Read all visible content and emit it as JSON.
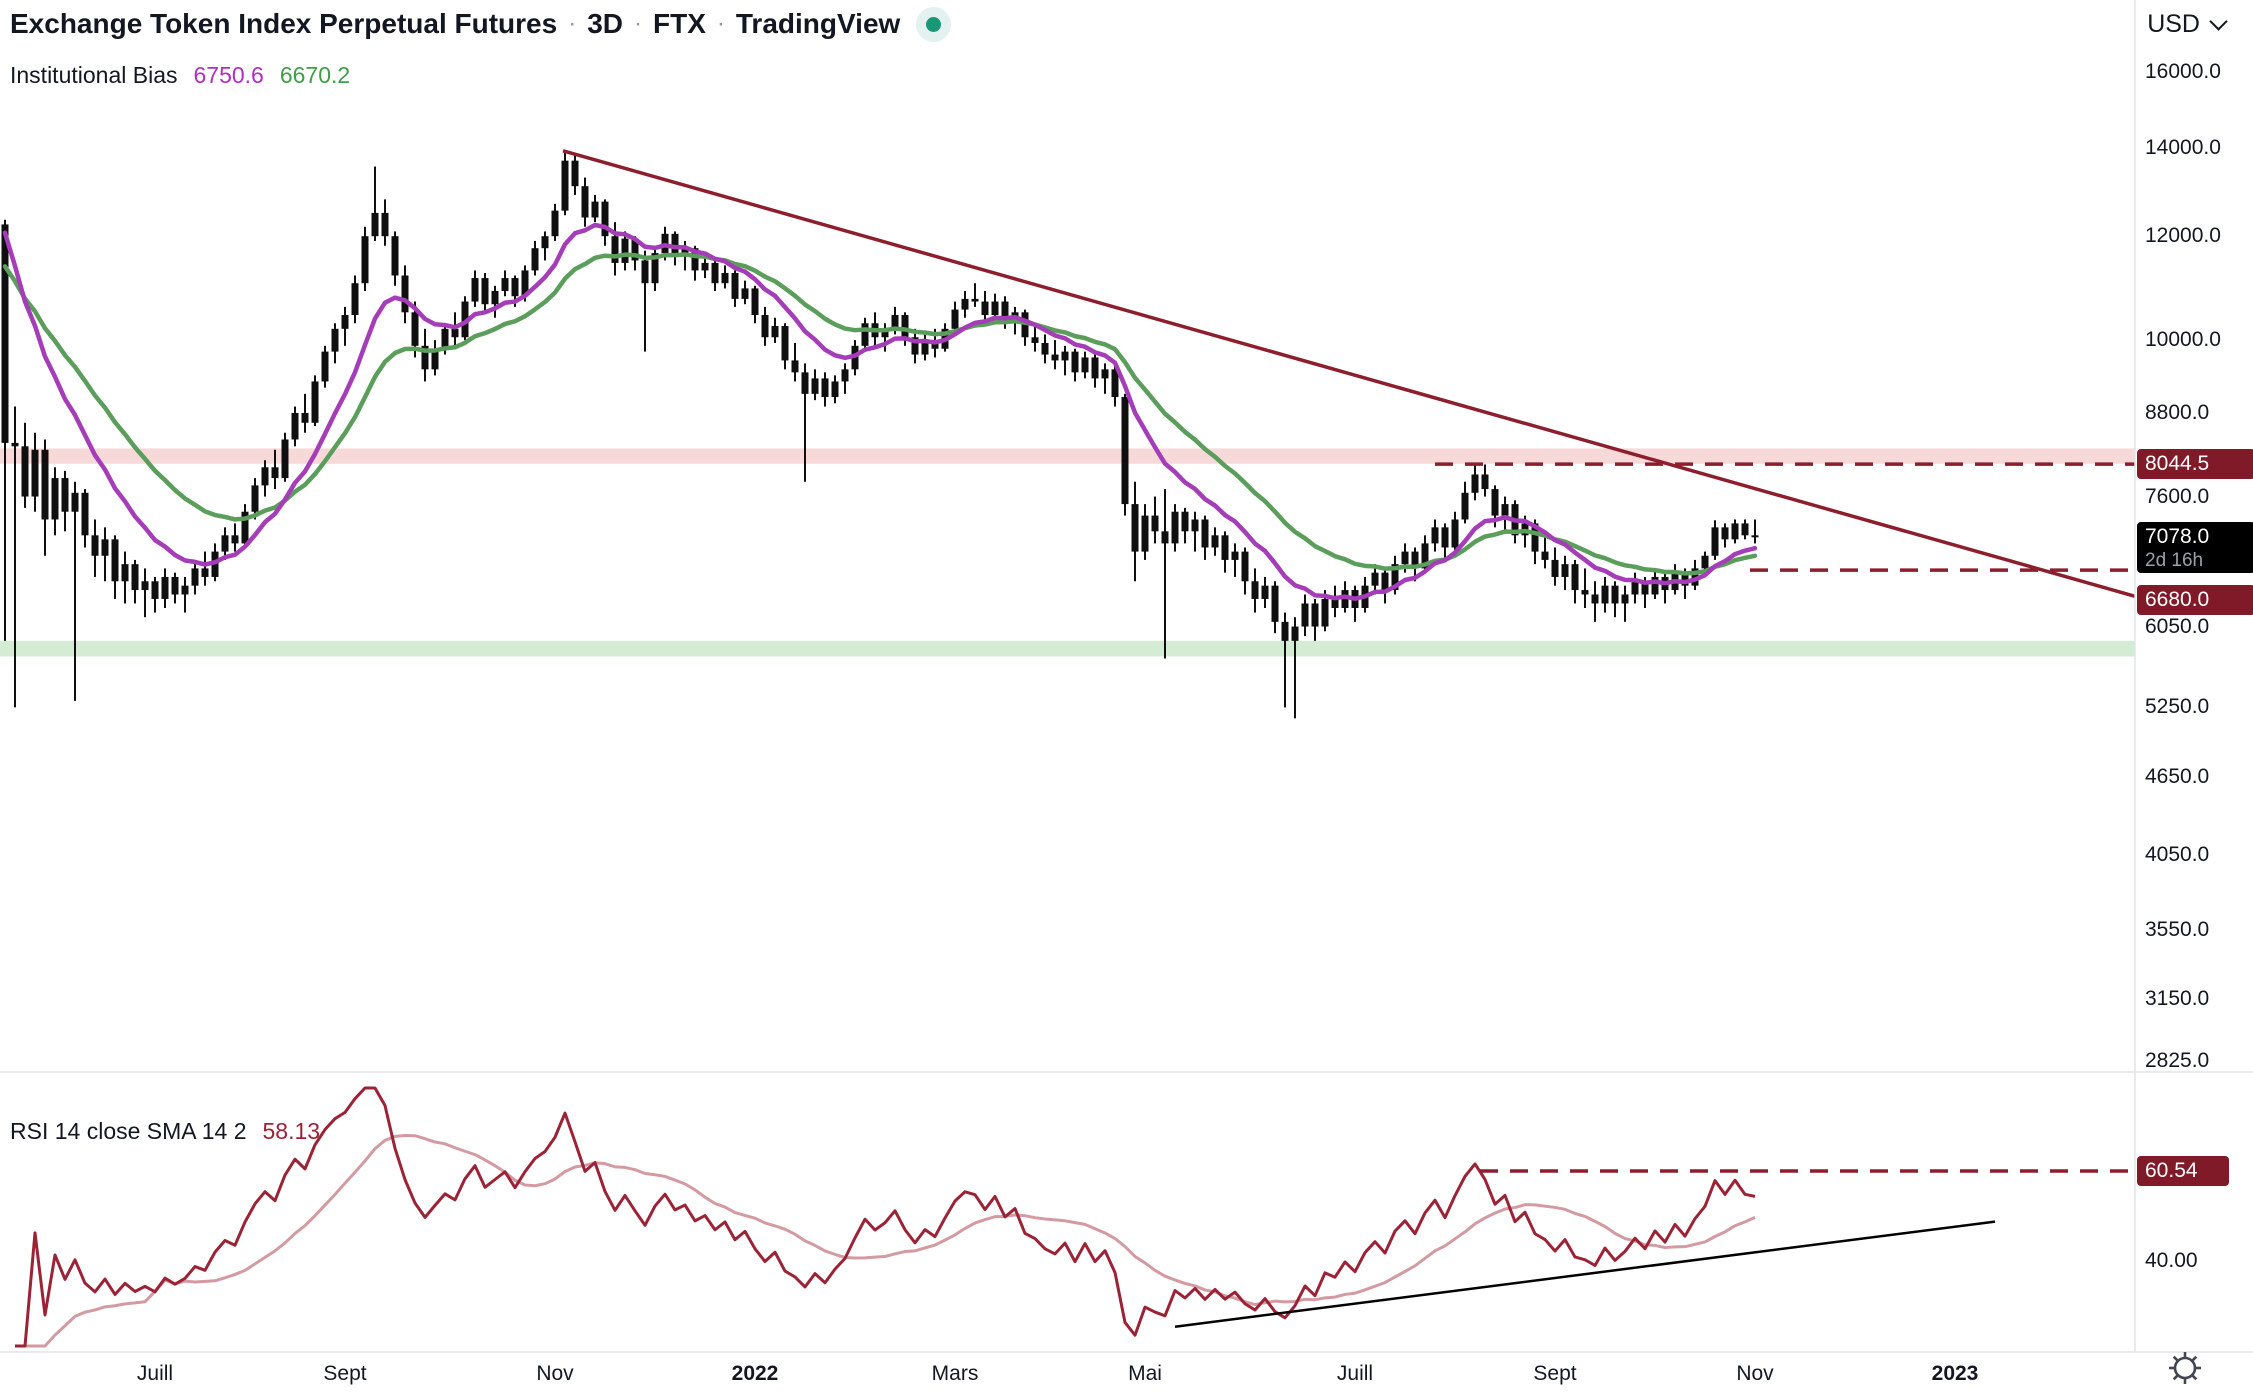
{
  "header": {
    "symbol_title": "Exchange Token Index Perpetual Futures",
    "separator": "·",
    "interval": "3D",
    "exchange": "FTX",
    "vendor": "TradingView",
    "status_color": "#189877",
    "currency": "USD"
  },
  "legend": {
    "indicator_name": "Institutional Bias",
    "value_fast": "6750.6",
    "value_slow": "6670.2",
    "fast_color": "#b02fc0",
    "slow_color": "#3f9e46"
  },
  "rsi_legend": {
    "name": "RSI 14 close SMA 14 2",
    "value": "58.13",
    "value_color": "#9b2335"
  },
  "price_axis": {
    "ticks": [
      {
        "label": "16000.0",
        "value": 16000
      },
      {
        "label": "14000.0",
        "value": 14000
      },
      {
        "label": "12000.0",
        "value": 12000
      },
      {
        "label": "10000.0",
        "value": 10000
      },
      {
        "label": "8800.0",
        "value": 8800
      },
      {
        "label": "7600.0",
        "value": 7600
      },
      {
        "label": "6050.0",
        "value": 6050
      },
      {
        "label": "5250.0",
        "value": 5250
      },
      {
        "label": "4650.0",
        "value": 4650
      },
      {
        "label": "4050.0",
        "value": 4050
      },
      {
        "label": "3550.0",
        "value": 3550
      },
      {
        "label": "3150.0",
        "value": 3150
      },
      {
        "label": "2825.0",
        "value": 2825
      }
    ],
    "badges": [
      {
        "label": "8044.5",
        "value": 8044.5,
        "bg": "#801a28",
        "offset": 0
      },
      {
        "label": "7078.0",
        "sub": "2d 16h",
        "value": 7078,
        "bg": "#000000",
        "offset": 0
      },
      {
        "label": "6680.0",
        "value": 6680,
        "bg": "#801a28",
        "offset": 30
      }
    ]
  },
  "rsi_axis": {
    "tick": {
      "label": "40.00",
      "value": 40
    },
    "badge": {
      "label": "60.54",
      "value": 60.54,
      "bg": "#801a28"
    }
  },
  "time_axis": {
    "labels": [
      {
        "label": "Juill",
        "bar": 15,
        "bold": false
      },
      {
        "label": "Sept",
        "bar": 34,
        "bold": false
      },
      {
        "label": "Nov",
        "bar": 55,
        "bold": false
      },
      {
        "label": "2022",
        "bar": 75,
        "bold": true
      },
      {
        "label": "Mars",
        "bar": 95,
        "bold": false
      },
      {
        "label": "Mai",
        "bar": 114,
        "bold": false
      },
      {
        "label": "Juill",
        "bar": 135,
        "bold": false
      },
      {
        "label": "Sept",
        "bar": 155,
        "bold": false
      },
      {
        "label": "Nov",
        "bar": 175,
        "bold": false
      },
      {
        "label": "2023",
        "bar": 195,
        "bold": true
      }
    ]
  },
  "chart_data": {
    "type": "candlestick",
    "interval": "3D",
    "scale": "log",
    "price_range_visible": [
      2825,
      16000
    ],
    "candle_color": "#0f0f0f",
    "ohlc": [
      [
        12250,
        12350,
        5900,
        8350
      ],
      [
        8350,
        8900,
        5250,
        8300
      ],
      [
        8300,
        8650,
        7450,
        7600
      ],
      [
        7600,
        8500,
        7400,
        8250
      ],
      [
        8250,
        8400,
        6850,
        7300
      ],
      [
        7300,
        8000,
        7100,
        7850
      ],
      [
        7850,
        7950,
        7150,
        7400
      ],
      [
        7400,
        7800,
        5310,
        7650
      ],
      [
        7650,
        7700,
        6950,
        7100
      ],
      [
        7100,
        7300,
        6600,
        6850
      ],
      [
        6850,
        7200,
        6550,
        7050
      ],
      [
        7050,
        7100,
        6350,
        6550
      ],
      [
        6550,
        6900,
        6300,
        6750
      ],
      [
        6750,
        6800,
        6300,
        6450
      ],
      [
        6450,
        6700,
        6150,
        6550
      ],
      [
        6550,
        6600,
        6200,
        6350
      ],
      [
        6350,
        6700,
        6250,
        6600
      ],
      [
        6600,
        6650,
        6300,
        6400
      ],
      [
        6400,
        6600,
        6200,
        6500
      ],
      [
        6500,
        6800,
        6400,
        6700
      ],
      [
        6700,
        6900,
        6500,
        6600
      ],
      [
        6600,
        7000,
        6550,
        6900
      ],
      [
        6900,
        7200,
        6800,
        7100
      ],
      [
        7100,
        7250,
        6900,
        7000
      ],
      [
        7000,
        7500,
        6950,
        7400
      ],
      [
        7400,
        7850,
        7300,
        7750
      ],
      [
        7750,
        8100,
        7600,
        8000
      ],
      [
        8000,
        8250,
        7700,
        7850
      ],
      [
        7850,
        8500,
        7800,
        8400
      ],
      [
        8400,
        8900,
        8300,
        8800
      ],
      [
        8800,
        9100,
        8500,
        8650
      ],
      [
        8650,
        9400,
        8600,
        9300
      ],
      [
        9300,
        9900,
        9200,
        9800
      ],
      [
        9800,
        10300,
        9600,
        10200
      ],
      [
        10200,
        10600,
        9900,
        10450
      ],
      [
        10450,
        11200,
        10300,
        11050
      ],
      [
        11050,
        12200,
        10900,
        12000
      ],
      [
        12000,
        13560,
        11900,
        12500
      ],
      [
        12500,
        12800,
        11800,
        12000
      ],
      [
        12000,
        12100,
        11000,
        11200
      ],
      [
        11200,
        11400,
        10300,
        10500
      ],
      [
        10500,
        10700,
        9700,
        9900
      ],
      [
        9900,
        10200,
        9300,
        9500
      ],
      [
        9500,
        10000,
        9400,
        9850
      ],
      [
        9850,
        10300,
        9750,
        10200
      ],
      [
        10200,
        10500,
        9900,
        10050
      ],
      [
        10050,
        10800,
        10000,
        10700
      ],
      [
        10700,
        11300,
        10600,
        11150
      ],
      [
        11150,
        11250,
        10500,
        10650
      ],
      [
        10650,
        11000,
        10400,
        10900
      ],
      [
        10900,
        11300,
        10800,
        11150
      ],
      [
        11150,
        11200,
        10600,
        10800
      ],
      [
        10800,
        11400,
        10700,
        11300
      ],
      [
        11300,
        11900,
        11200,
        11750
      ],
      [
        11750,
        12100,
        11500,
        12000
      ],
      [
        12000,
        12700,
        11900,
        12550
      ],
      [
        12550,
        13890,
        12450,
        13700
      ],
      [
        13700,
        13850,
        12900,
        13100
      ],
      [
        13100,
        13300,
        12200,
        12400
      ],
      [
        12400,
        12900,
        12300,
        12750
      ],
      [
        12750,
        12800,
        11800,
        12000
      ],
      [
        12000,
        12300,
        11200,
        11450
      ],
      [
        11450,
        12100,
        11300,
        11950
      ],
      [
        11950,
        12000,
        11300,
        11500
      ],
      [
        11500,
        11700,
        9800,
        11050
      ],
      [
        11050,
        11800,
        10900,
        11650
      ],
      [
        11650,
        12200,
        11500,
        12050
      ],
      [
        12050,
        12100,
        11400,
        11600
      ],
      [
        11600,
        11900,
        11300,
        11750
      ],
      [
        11750,
        11800,
        11100,
        11300
      ],
      [
        11300,
        11600,
        11150,
        11450
      ],
      [
        11450,
        11500,
        10900,
        11050
      ],
      [
        11050,
        11400,
        10950,
        11250
      ],
      [
        11250,
        11300,
        10600,
        10750
      ],
      [
        10750,
        11100,
        10650,
        10950
      ],
      [
        10950,
        11000,
        10300,
        10450
      ],
      [
        10450,
        10600,
        9900,
        10050
      ],
      [
        10050,
        10400,
        9950,
        10250
      ],
      [
        10250,
        10300,
        9500,
        9650
      ],
      [
        9650,
        9950,
        9300,
        9450
      ],
      [
        9450,
        9600,
        7800,
        9100
      ],
      [
        9100,
        9500,
        9000,
        9350
      ],
      [
        9350,
        9450,
        8900,
        9050
      ],
      [
        9050,
        9400,
        8950,
        9300
      ],
      [
        9300,
        9600,
        9100,
        9500
      ],
      [
        9500,
        10000,
        9400,
        9900
      ],
      [
        9900,
        10400,
        9800,
        10300
      ],
      [
        10300,
        10500,
        9900,
        10050
      ],
      [
        10050,
        10300,
        9800,
        10200
      ],
      [
        10200,
        10600,
        10100,
        10450
      ],
      [
        10450,
        10500,
        9900,
        10050
      ],
      [
        10050,
        10200,
        9600,
        9750
      ],
      [
        9750,
        10100,
        9650,
        10000
      ],
      [
        10000,
        10200,
        9700,
        9850
      ],
      [
        9850,
        10300,
        9800,
        10200
      ],
      [
        10200,
        10700,
        10100,
        10550
      ],
      [
        10550,
        10900,
        10400,
        10750
      ],
      [
        10750,
        11050,
        10600,
        10700
      ],
      [
        10700,
        10900,
        10300,
        10450
      ],
      [
        10450,
        10850,
        10350,
        10700
      ],
      [
        10700,
        10800,
        10200,
        10350
      ],
      [
        10350,
        10600,
        10100,
        10500
      ],
      [
        10500,
        10550,
        9900,
        10050
      ],
      [
        10050,
        10300,
        9800,
        9950
      ],
      [
        9950,
        10100,
        9600,
        9750
      ],
      [
        9750,
        10000,
        9500,
        9650
      ],
      [
        9650,
        9900,
        9400,
        9800
      ],
      [
        9800,
        9850,
        9300,
        9450
      ],
      [
        9450,
        9800,
        9350,
        9700
      ],
      [
        9700,
        9750,
        9200,
        9350
      ],
      [
        9350,
        9600,
        9100,
        9500
      ],
      [
        9500,
        9550,
        8900,
        9050
      ],
      [
        9050,
        9100,
        7350,
        7500
      ],
      [
        7500,
        7800,
        6550,
        6900
      ],
      [
        6900,
        7500,
        6800,
        7350
      ],
      [
        7350,
        7600,
        7000,
        7150
      ],
      [
        7150,
        7700,
        5720,
        7000
      ],
      [
        7000,
        7500,
        6900,
        7400
      ],
      [
        7400,
        7450,
        7000,
        7150
      ],
      [
        7150,
        7400,
        6900,
        7300
      ],
      [
        7300,
        7350,
        6800,
        6950
      ],
      [
        6950,
        7200,
        6850,
        7100
      ],
      [
        7100,
        7150,
        6650,
        6800
      ],
      [
        6800,
        7000,
        6600,
        6900
      ],
      [
        6900,
        6950,
        6400,
        6550
      ],
      [
        6550,
        6700,
        6200,
        6350
      ],
      [
        6350,
        6600,
        6250,
        6500
      ],
      [
        6500,
        6550,
        5980,
        6100
      ],
      [
        6100,
        6200,
        5250,
        5900
      ],
      [
        5900,
        6150,
        5150,
        6050
      ],
      [
        6050,
        6400,
        5950,
        6300
      ],
      [
        6300,
        6350,
        5900,
        6050
      ],
      [
        6050,
        6450,
        6000,
        6350
      ],
      [
        6350,
        6500,
        6150,
        6250
      ],
      [
        6250,
        6550,
        6200,
        6450
      ],
      [
        6450,
        6500,
        6100,
        6250
      ],
      [
        6250,
        6600,
        6200,
        6500
      ],
      [
        6500,
        6750,
        6400,
        6650
      ],
      [
        6650,
        6700,
        6300,
        6450
      ],
      [
        6450,
        6850,
        6400,
        6750
      ],
      [
        6750,
        7000,
        6650,
        6900
      ],
      [
        6900,
        6950,
        6550,
        6700
      ],
      [
        6700,
        7100,
        6650,
        7000
      ],
      [
        7000,
        7300,
        6900,
        7200
      ],
      [
        7200,
        7250,
        6800,
        6950
      ],
      [
        6950,
        7400,
        6900,
        7300
      ],
      [
        7300,
        7800,
        7250,
        7650
      ],
      [
        7650,
        8045,
        7550,
        7900
      ],
      [
        7900,
        8040,
        7600,
        7700
      ],
      [
        7700,
        7750,
        7200,
        7350
      ],
      [
        7350,
        7600,
        7150,
        7500
      ],
      [
        7500,
        7550,
        7000,
        7100
      ],
      [
        7100,
        7350,
        6950,
        7250
      ],
      [
        7250,
        7300,
        6750,
        6900
      ],
      [
        6900,
        7100,
        6700,
        6800
      ],
      [
        6800,
        6950,
        6500,
        6600
      ],
      [
        6600,
        6850,
        6450,
        6750
      ],
      [
        6750,
        6800,
        6300,
        6450
      ],
      [
        6450,
        6700,
        6250,
        6400
      ],
      [
        6400,
        6550,
        6100,
        6300
      ],
      [
        6300,
        6600,
        6200,
        6500
      ],
      [
        6500,
        6550,
        6150,
        6300
      ],
      [
        6300,
        6500,
        6100,
        6400
      ],
      [
        6400,
        6650,
        6300,
        6550
      ],
      [
        6550,
        6600,
        6250,
        6400
      ],
      [
        6400,
        6700,
        6350,
        6600
      ],
      [
        6600,
        6650,
        6300,
        6450
      ],
      [
        6450,
        6750,
        6400,
        6650
      ],
      [
        6650,
        6700,
        6350,
        6500
      ],
      [
        6500,
        6800,
        6450,
        6700
      ],
      [
        6700,
        6900,
        6600,
        6850
      ],
      [
        6850,
        7290,
        6800,
        7200
      ],
      [
        7200,
        7250,
        6950,
        7050
      ],
      [
        7050,
        7300,
        7000,
        7250
      ],
      [
        7250,
        7300,
        7050,
        7100
      ],
      [
        7100,
        7300,
        7000,
        7078
      ]
    ],
    "overlays": {
      "ema_fast": {
        "name": "Institutional Bias (fast)",
        "period": 10,
        "color": "#a63db8",
        "last_value": 6750.6
      },
      "ema_slow": {
        "name": "Institutional Bias (slow)",
        "period": 20,
        "color": "#5b9e5c",
        "last_value": 6670.2
      }
    },
    "zones": [
      {
        "type": "resistance",
        "price_from": 8050,
        "price_to": 8270,
        "color": "#f8d9da"
      },
      {
        "type": "support",
        "price_from": 5740,
        "price_to": 5900,
        "color": "#d5ecd4"
      }
    ],
    "lines": [
      {
        "type": "trendline",
        "from_bar": 55.8,
        "from_price": 13940,
        "to_bar": 213,
        "to_price": 6380,
        "color": "#8c1e2e",
        "style": "solid"
      },
      {
        "type": "horizontal",
        "price": 8044.5,
        "from_bar": 143,
        "to_bar": 213,
        "color": "#8c1e2e",
        "style": "dashed"
      },
      {
        "type": "horizontal",
        "price": 6680,
        "from_bar": 174.5,
        "to_bar": 213,
        "color": "#8c1e2e",
        "style": "dashed"
      }
    ],
    "rsi_panel": {
      "indicator": "RSI",
      "length": 14,
      "source": "close",
      "smoothing": "SMA 14",
      "line_color": "#9b2335",
      "sma_color": "#d49aa2",
      "last_value": 58.13,
      "level_line": {
        "value": 60.54,
        "from_bar": 147.5,
        "to_bar": 213,
        "style": "dashed",
        "color": "#8c1e2e"
      },
      "trendline": {
        "from_bar": 117,
        "from_rsi": 25,
        "to_bar": 199,
        "to_rsi": 49,
        "color": "#000000"
      },
      "axis_tick": 40
    }
  }
}
